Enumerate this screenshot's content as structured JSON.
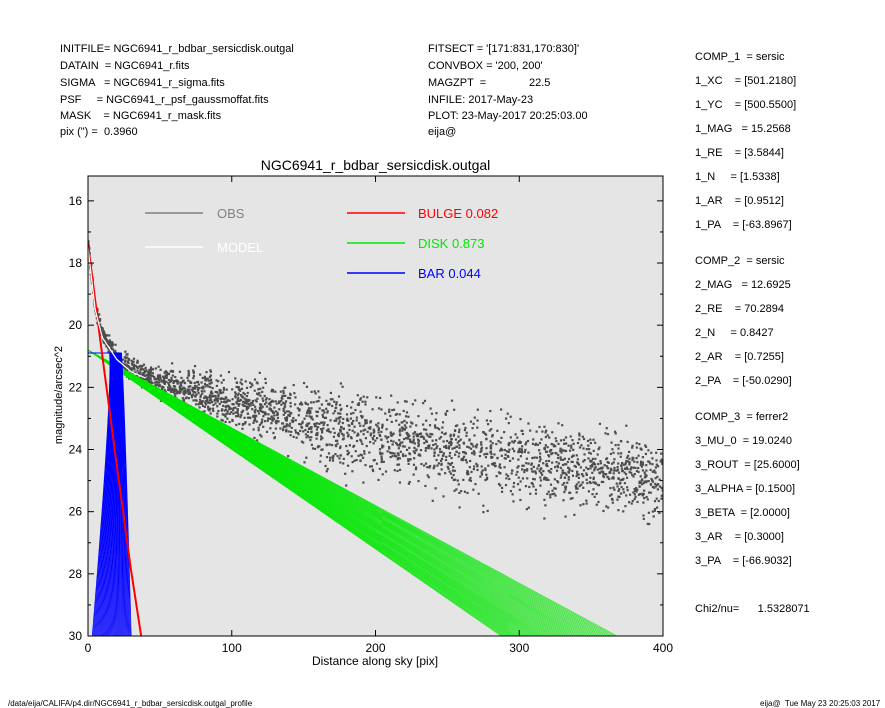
{
  "header": {
    "left_lines": [
      "INITFILE= NGC6941_r_bdbar_sersicdisk.outgal",
      "DATAIN  = NGC6941_r.fits",
      "SIGMA   = NGC6941_r_sigma.fits",
      "PSF     = NGC6941_r_psf_gaussmoffat.fits",
      "MASK    = NGC6941_r_mask.fits",
      "pix (\") =  0.3960"
    ],
    "mid_lines": [
      "FITSECT = '[171:831,170:830]'",
      "CONVBOX = '200, 200'",
      "MAGZPT  =              22.5",
      "INFILE: 2017-May-23",
      "PLOT: 23-May-2017 20:25:03.00",
      "eija@"
    ]
  },
  "components": {
    "comp1_title": "COMP_1  = sersic",
    "comp1": [
      "1_XC    = [501.2180]",
      "1_YC    = [500.5500]",
      "1_MAG   = 15.2568",
      "1_RE    = [3.5844]",
      "1_N     = [1.5338]",
      "1_AR    = [0.9512]",
      "1_PA    = [-63.8967]"
    ],
    "comp2_title": "COMP_2  = sersic",
    "comp2": [
      "2_MAG   = 12.6925",
      "2_RE    = 70.2894",
      "2_N     = 0.8427",
      "2_AR    = [0.7255]",
      "2_PA    = [-50.0290]"
    ],
    "comp3_title": "COMP_3  = ferrer2",
    "comp3": [
      "3_MU_0  = 19.0240",
      "3_ROUT  = [25.6000]",
      "3_ALPHA = [0.1500]",
      "3_BETA  = [2.0000]",
      "3_AR    = [0.3000]",
      "3_PA    = [-66.9032]"
    ],
    "chi2": "Chi2/nu=      1.5328071"
  },
  "footer": {
    "path": "/data/eija/CALIFA/p4.dir/NGC6941_r_bdbar_sersicdisk.outgal_profile",
    "stamp": "eija@  Tue May 23 20:25:03 2017"
  },
  "colors": {
    "obs": "#555555",
    "model": "#ffffff",
    "bulge": "#ff0000",
    "disk": "#00e600",
    "bar": "#0000ff",
    "panel": "#e5e5e5"
  },
  "chart_data": {
    "type": "scatter",
    "title": "NGC6941_r_bdbar_sersicdisk.outgal",
    "xlabel": "Distance along sky [pix]",
    "ylabel": "magnitude/arcsec^2",
    "xlim": [
      0,
      400
    ],
    "ylim": [
      30,
      15.2
    ],
    "x_ticks": [
      0,
      100,
      200,
      300,
      400
    ],
    "y_ticks": [
      16,
      18,
      20,
      22,
      24,
      26,
      28,
      30
    ],
    "legend": [
      {
        "label": "OBS",
        "color": "#808080"
      },
      {
        "label": "MODEL",
        "color": "#ffffff"
      },
      {
        "label": "BULGE  0.082",
        "color": "#ff0000"
      },
      {
        "label": "DISK  0.873",
        "color": "#00e600"
      },
      {
        "label": "BAR  0.044",
        "color": "#0000ff"
      }
    ],
    "series": [
      {
        "name": "OBS",
        "trend": {
          "x": [
            0,
            5,
            10,
            20,
            30,
            50,
            100,
            200,
            300,
            400
          ],
          "y": [
            17.4,
            19.4,
            20.3,
            21.0,
            21.4,
            21.8,
            22.5,
            23.6,
            24.4,
            25.0
          ]
        }
      },
      {
        "name": "BULGE",
        "x": [
          0,
          10,
          20,
          30,
          37
        ],
        "y": [
          17.4,
          21.0,
          24.5,
          27.9,
          30.0
        ]
      },
      {
        "name": "DISK",
        "x": [
          0,
          100,
          200,
          300,
          330,
          400
        ],
        "y_upper": [
          20.8,
          23.3,
          25.8,
          28.3,
          29.0,
          30.0
        ],
        "y_lower": [
          20.8,
          24.0,
          27.3,
          30.0,
          30.0,
          30.0
        ],
        "x_end_lower": 240,
        "x_end_upper": 330
      },
      {
        "name": "BAR",
        "y_top": 20.9,
        "x_inner": [
          3,
          8
        ],
        "x_outer": [
          15,
          30
        ],
        "y_bottom": 30.0
      }
    ]
  }
}
